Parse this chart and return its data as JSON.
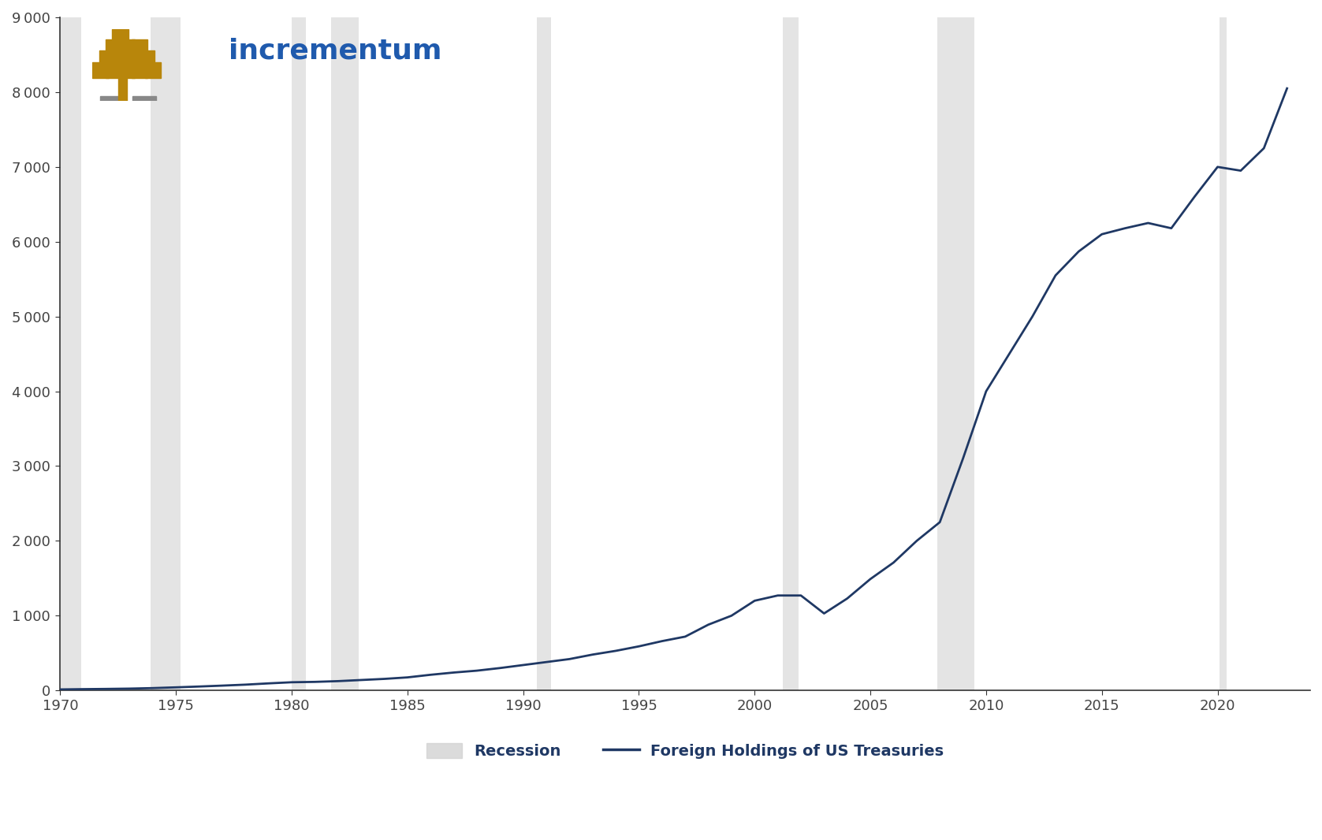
{
  "title": "",
  "ylabel": "",
  "xlabel": "",
  "bg_color": "#ffffff",
  "plot_bg_color": "#ffffff",
  "line_color": "#1f3864",
  "recession_color": "#d3d3d3",
  "recession_alpha": 0.6,
  "line_width": 2.0,
  "ylim": [
    0,
    9000
  ],
  "xlim": [
    1970,
    2024
  ],
  "yticks": [
    0,
    1000,
    2000,
    3000,
    4000,
    5000,
    6000,
    7000,
    8000,
    9000
  ],
  "xticks": [
    1970,
    1975,
    1980,
    1985,
    1990,
    1995,
    2000,
    2005,
    2010,
    2015,
    2020
  ],
  "recession_periods": [
    [
      1970.0,
      1970.9
    ],
    [
      1973.9,
      1975.2
    ],
    [
      1980.0,
      1980.6
    ],
    [
      1981.7,
      1982.9
    ],
    [
      1990.6,
      1991.2
    ],
    [
      2001.2,
      2001.9
    ],
    [
      2007.9,
      2009.5
    ],
    [
      2020.1,
      2020.4
    ]
  ],
  "years": [
    1970,
    1971,
    1972,
    1973,
    1974,
    1975,
    1976,
    1977,
    1978,
    1979,
    1980,
    1981,
    1982,
    1983,
    1984,
    1985,
    1986,
    1987,
    1988,
    1989,
    1990,
    1991,
    1992,
    1993,
    1994,
    1995,
    1996,
    1997,
    1998,
    1999,
    2000,
    2001,
    2002,
    2003,
    2004,
    2005,
    2006,
    2007,
    2008,
    2009,
    2010,
    2011,
    2012,
    2013,
    2014,
    2015,
    2016,
    2017,
    2018,
    2019,
    2020,
    2021,
    2022,
    2023
  ],
  "values": [
    14,
    18,
    21,
    25,
    32,
    42,
    53,
    65,
    78,
    95,
    110,
    115,
    125,
    140,
    155,
    175,
    210,
    240,
    265,
    300,
    340,
    380,
    420,
    480,
    530,
    590,
    660,
    720,
    880,
    1000,
    1200,
    1270,
    1270,
    1030,
    1230,
    1490,
    1710,
    2000,
    2250,
    3100,
    4000,
    4500,
    5000,
    5550,
    5870,
    6100,
    6180,
    6250,
    6180,
    6600,
    7000,
    6950,
    7250,
    8050
  ]
}
